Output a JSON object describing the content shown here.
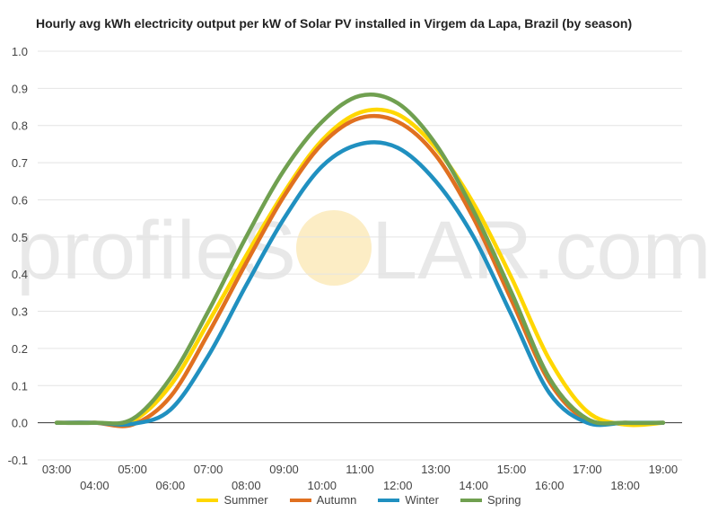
{
  "watermark": {
    "left": "profileS",
    "right": "LAR.com",
    "sun_color": "#f9d77e"
  },
  "chart_data": {
    "type": "line",
    "title": "Hourly avg kWh electricity output per kW of Solar PV installed in Virgem da Lapa, Brazil (by season)",
    "xlabel": "",
    "ylabel": "",
    "ylim": [
      -0.1,
      1.0
    ],
    "yticks": [
      -0.1,
      0.0,
      0.1,
      0.2,
      0.3,
      0.4,
      0.5,
      0.6,
      0.7,
      0.8,
      0.9,
      1.0
    ],
    "ytick_labels": [
      "-0.1",
      "0.0",
      "0.1",
      "0.2",
      "0.3",
      "0.4",
      "0.5",
      "0.6",
      "0.7",
      "0.8",
      "0.9",
      "1.0"
    ],
    "xlim": [
      2.5,
      19.5
    ],
    "xtick_labels_top": [
      "03:00",
      "05:00",
      "07:00",
      "09:00",
      "11:00",
      "13:00",
      "15:00",
      "17:00",
      "19:00"
    ],
    "xtick_labels_bottom": [
      "04:00",
      "06:00",
      "08:00",
      "10:00",
      "12:00",
      "14:00",
      "16:00",
      "18:00"
    ],
    "x": [
      3,
      4,
      5,
      6,
      7,
      8,
      9,
      10,
      11,
      12,
      13,
      14,
      15,
      16,
      17,
      18,
      19
    ],
    "grid": true,
    "legend_position": "bottom",
    "series": [
      {
        "name": "Summer",
        "color": "#ffd700",
        "values": [
          0,
          0,
          0.005,
          0.1,
          0.27,
          0.45,
          0.62,
          0.76,
          0.835,
          0.83,
          0.74,
          0.59,
          0.39,
          0.17,
          0.03,
          -0.005,
          0
        ]
      },
      {
        "name": "Autumn",
        "color": "#e07020",
        "values": [
          0,
          0,
          -0.005,
          0.07,
          0.24,
          0.43,
          0.61,
          0.75,
          0.82,
          0.81,
          0.72,
          0.55,
          0.33,
          0.11,
          0.005,
          0,
          0
        ]
      },
      {
        "name": "Winter",
        "color": "#2090c0",
        "values": [
          0,
          0,
          -0.003,
          0.035,
          0.18,
          0.37,
          0.55,
          0.69,
          0.75,
          0.74,
          0.65,
          0.5,
          0.29,
          0.08,
          0,
          0,
          0
        ]
      },
      {
        "name": "Spring",
        "color": "#70a050",
        "values": [
          0,
          0,
          0.01,
          0.12,
          0.3,
          0.5,
          0.68,
          0.81,
          0.88,
          0.86,
          0.75,
          0.57,
          0.35,
          0.12,
          0.01,
          0,
          0
        ]
      }
    ]
  }
}
